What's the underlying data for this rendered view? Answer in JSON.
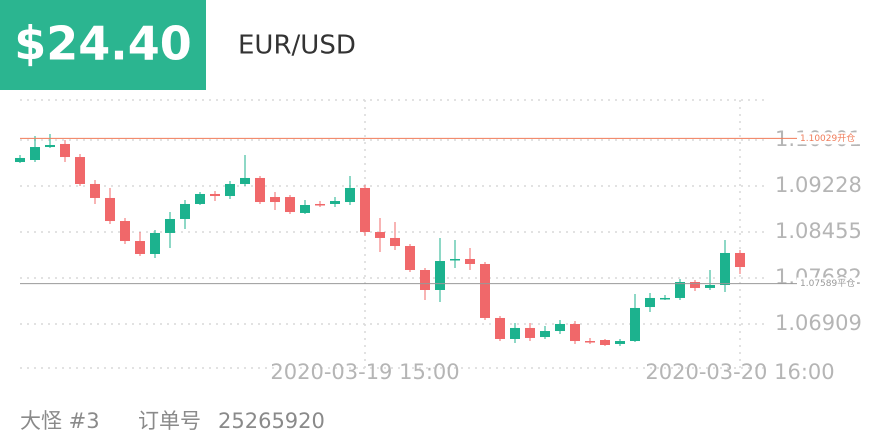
{
  "header": {
    "amount": "$24.40",
    "symbol": "EUR/USD"
  },
  "footer": {
    "user": "大怪 #3",
    "order_label": "订单号",
    "order_no": "25265920"
  },
  "chart_data": {
    "type": "candlestick",
    "categories": [
      null,
      null,
      null,
      null,
      null,
      null,
      null,
      null,
      null,
      null,
      null,
      null,
      null,
      null,
      null,
      null,
      null,
      null,
      null,
      null,
      null,
      null,
      null,
      "2020-03-19 15:00",
      null,
      null,
      null,
      null,
      null,
      null,
      null,
      null,
      null,
      null,
      null,
      null,
      null,
      null,
      null,
      null,
      null,
      null,
      null,
      null,
      null,
      null,
      null,
      null,
      "2020-03-20 16:00"
    ],
    "open": [
      1.09631,
      1.09665,
      1.09883,
      1.09934,
      1.09715,
      1.09262,
      1.09027,
      1.0864,
      1.08304,
      1.08086,
      1.08439,
      1.08674,
      1.08926,
      1.09094,
      1.0906,
      1.09262,
      1.09363,
      1.09043,
      1.09043,
      1.08775,
      1.08926,
      1.08926,
      1.08959,
      1.09195,
      1.08455,
      1.08355,
      1.0822,
      1.07817,
      1.07481,
      1.07985,
      1.08002,
      1.07918,
      1.07011,
      1.06658,
      1.06843,
      1.06691,
      1.06792,
      1.0691,
      1.06624,
      1.06641,
      1.06574,
      1.06624,
      1.07195,
      1.0733,
      1.07347,
      1.07615,
      1.07515,
      1.07565,
      1.08103
    ],
    "high": [
      1.09749,
      1.10068,
      1.10102,
      1.10001,
      1.09766,
      1.09329,
      1.09195,
      1.08691,
      1.08455,
      1.08489,
      1.08791,
      1.08993,
      1.09127,
      1.09144,
      1.09312,
      1.09749,
      1.09396,
      1.09127,
      1.09077,
      1.08993,
      1.08976,
      1.09043,
      1.09396,
      1.09245,
      1.08691,
      1.08623,
      1.08254,
      1.0785,
      1.08355,
      1.08321,
      1.08187,
      1.07951,
      1.07045,
      1.06927,
      1.06927,
      1.06876,
      1.06977,
      1.0696,
      1.06675,
      1.06658,
      1.06658,
      1.07414,
      1.07431,
      1.07397,
      1.07666,
      1.07649,
      1.07817,
      1.08321,
      1.08153
    ],
    "low": [
      1.09615,
      1.09631,
      1.09867,
      1.09631,
      1.09228,
      1.08926,
      1.0859,
      1.08254,
      1.08052,
      1.08019,
      1.08187,
      1.08506,
      1.08909,
      1.08976,
      1.0901,
      1.09228,
      1.08926,
      1.08825,
      1.08758,
      1.08758,
      1.08875,
      1.08875,
      1.08909,
      1.08388,
      1.08119,
      1.08153,
      1.07783,
      1.07313,
      1.0728,
      1.0785,
      1.07817,
      1.06977,
      1.06624,
      1.06591,
      1.06624,
      1.06658,
      1.06742,
      1.06574,
      1.06574,
      1.0654,
      1.0654,
      1.06607,
      1.07112,
      1.07313,
      1.07313,
      1.07464,
      1.07481,
      1.07447,
      1.0775
    ],
    "close": [
      1.09699,
      1.09883,
      1.09917,
      1.09715,
      1.09262,
      1.09027,
      1.0864,
      1.08304,
      1.08086,
      1.08439,
      1.08674,
      1.08926,
      1.09094,
      1.0906,
      1.09262,
      1.09363,
      1.08959,
      1.08959,
      1.08791,
      1.08909,
      1.08909,
      1.08976,
      1.09195,
      1.08455,
      1.08355,
      1.0822,
      1.07817,
      1.07481,
      1.07968,
      1.08002,
      1.07918,
      1.07011,
      1.06658,
      1.06843,
      1.06675,
      1.06792,
      1.0691,
      1.06624,
      1.06607,
      1.06557,
      1.06624,
      1.07179,
      1.07347,
      1.07347,
      1.07615,
      1.07515,
      1.07565,
      1.08103,
      1.07867
    ],
    "up_color": "#1cb28e",
    "down_color": "#f0686a",
    "ylim": [
      1.06221,
      1.10673
    ],
    "yticks": [
      1.06909,
      1.07682,
      1.08455,
      1.09228,
      1.10001
    ],
    "grid": true,
    "reference_lines": [
      {
        "value": 1.10029,
        "label": "1.10029开仓",
        "color": "#f07c5a"
      },
      {
        "value": 1.07589,
        "label": "1.07589平仓",
        "color": "#999999"
      }
    ]
  }
}
